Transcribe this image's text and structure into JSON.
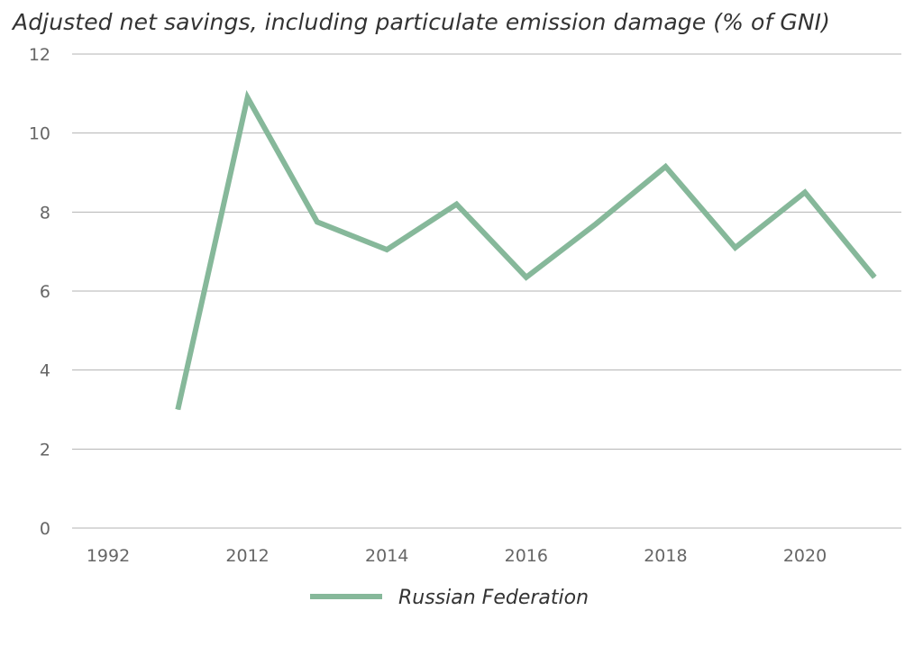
{
  "chart_data": {
    "type": "line",
    "title": "Adjusted net savings, including particulate emission damage (% of GNI)",
    "xlabel": "",
    "ylabel": "",
    "ylim": [
      0,
      12
    ],
    "yticks": [
      "0",
      "2",
      "4",
      "6",
      "8",
      "10",
      "12"
    ],
    "categories": [
      "1992",
      "2011",
      "2012",
      "2013",
      "2014",
      "2015",
      "2016",
      "2017",
      "2018",
      "2019",
      "2020",
      "2021"
    ],
    "xtick_labels": [
      "1992",
      "2012",
      "2014",
      "2016",
      "2018",
      "2020"
    ],
    "grid": true,
    "legend_position": "bottom-center",
    "series": [
      {
        "name": "Russian Federation",
        "color": "#86b89a",
        "values": [
          null,
          3.0,
          10.9,
          7.75,
          7.05,
          8.2,
          6.35,
          7.7,
          9.15,
          7.1,
          8.5,
          6.35
        ]
      }
    ]
  }
}
